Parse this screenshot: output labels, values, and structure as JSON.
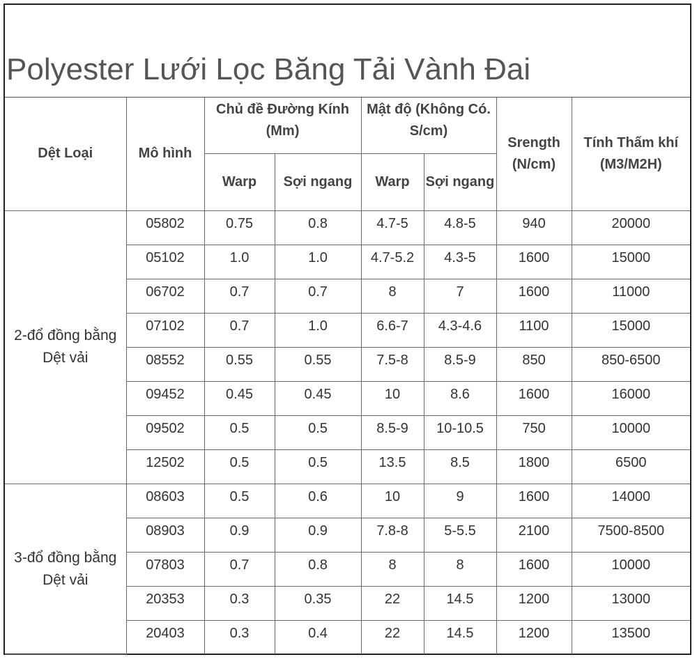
{
  "title": "Polyester Lưới Lọc Băng Tải Vành Đai",
  "headers": {
    "weave_type": "Dệt Loại",
    "model": "Mô hình",
    "thread_diameter": "Chủ đề Đường Kính (Mm)",
    "density": "Mật độ (Không Có. S/cm)",
    "strength": "Srength (N/cm)",
    "permeability": "Tính Thấm khí (M3/M2H)",
    "diameter_warp": "Warp",
    "diameter_weft": "Sợi ngang",
    "density_warp": "Warp",
    "density_weft": "Sợi ngang"
  },
  "groups": [
    {
      "label": "2-đổ đồng bằng Dệt vải",
      "rows": [
        {
          "model": "05802",
          "dia_warp": "0.75",
          "dia_weft": "0.8",
          "den_warp": "4.7-5",
          "den_weft": "4.8-5",
          "strength": "940",
          "permeability": "20000"
        },
        {
          "model": "05102",
          "dia_warp": "1.0",
          "dia_weft": "1.0",
          "den_warp": "4.7-5.2",
          "den_weft": "4.3-5",
          "strength": "1600",
          "permeability": "15000"
        },
        {
          "model": "06702",
          "dia_warp": "0.7",
          "dia_weft": "0.7",
          "den_warp": "8",
          "den_weft": "7",
          "strength": "1600",
          "permeability": "11000"
        },
        {
          "model": "07102",
          "dia_warp": "0.7",
          "dia_weft": "1.0",
          "den_warp": "6.6-7",
          "den_weft": "4.3-4.6",
          "strength": "1100",
          "permeability": "15000"
        },
        {
          "model": "08552",
          "dia_warp": "0.55",
          "dia_weft": "0.55",
          "den_warp": "7.5-8",
          "den_weft": "8.5-9",
          "strength": "850",
          "permeability": "850-6500"
        },
        {
          "model": "09452",
          "dia_warp": "0.45",
          "dia_weft": "0.45",
          "den_warp": "10",
          "den_weft": "8.6",
          "strength": "1600",
          "permeability": "16000"
        },
        {
          "model": "09502",
          "dia_warp": "0.5",
          "dia_weft": "0.5",
          "den_warp": "8.5-9",
          "den_weft": "10-10.5",
          "strength": "750",
          "permeability": "10000"
        },
        {
          "model": "12502",
          "dia_warp": "0.5",
          "dia_weft": "0.5",
          "den_warp": "13.5",
          "den_weft": "8.5",
          "strength": "1800",
          "permeability": "6500"
        }
      ]
    },
    {
      "label": "3-đổ đồng bằng Dệt vải",
      "rows": [
        {
          "model": "08603",
          "dia_warp": "0.5",
          "dia_weft": "0.6",
          "den_warp": "10",
          "den_weft": "9",
          "strength": "1600",
          "permeability": "14000"
        },
        {
          "model": "08903",
          "dia_warp": "0.9",
          "dia_weft": "0.9",
          "den_warp": "7.8-8",
          "den_weft": "5-5.5",
          "strength": "2100",
          "permeability": "7500-8500"
        },
        {
          "model": "07803",
          "dia_warp": "0.7",
          "dia_weft": "0.8",
          "den_warp": "8",
          "den_weft": "8",
          "strength": "1600",
          "permeability": "10000"
        },
        {
          "model": "20353",
          "dia_warp": "0.3",
          "dia_weft": "0.35",
          "den_warp": "22",
          "den_weft": "14.5",
          "strength": "1200",
          "permeability": "13000"
        },
        {
          "model": "20403",
          "dia_warp": "0.3",
          "dia_weft": "0.4",
          "den_warp": "22",
          "den_weft": "14.5",
          "strength": "1200",
          "permeability": "13500"
        }
      ]
    }
  ]
}
